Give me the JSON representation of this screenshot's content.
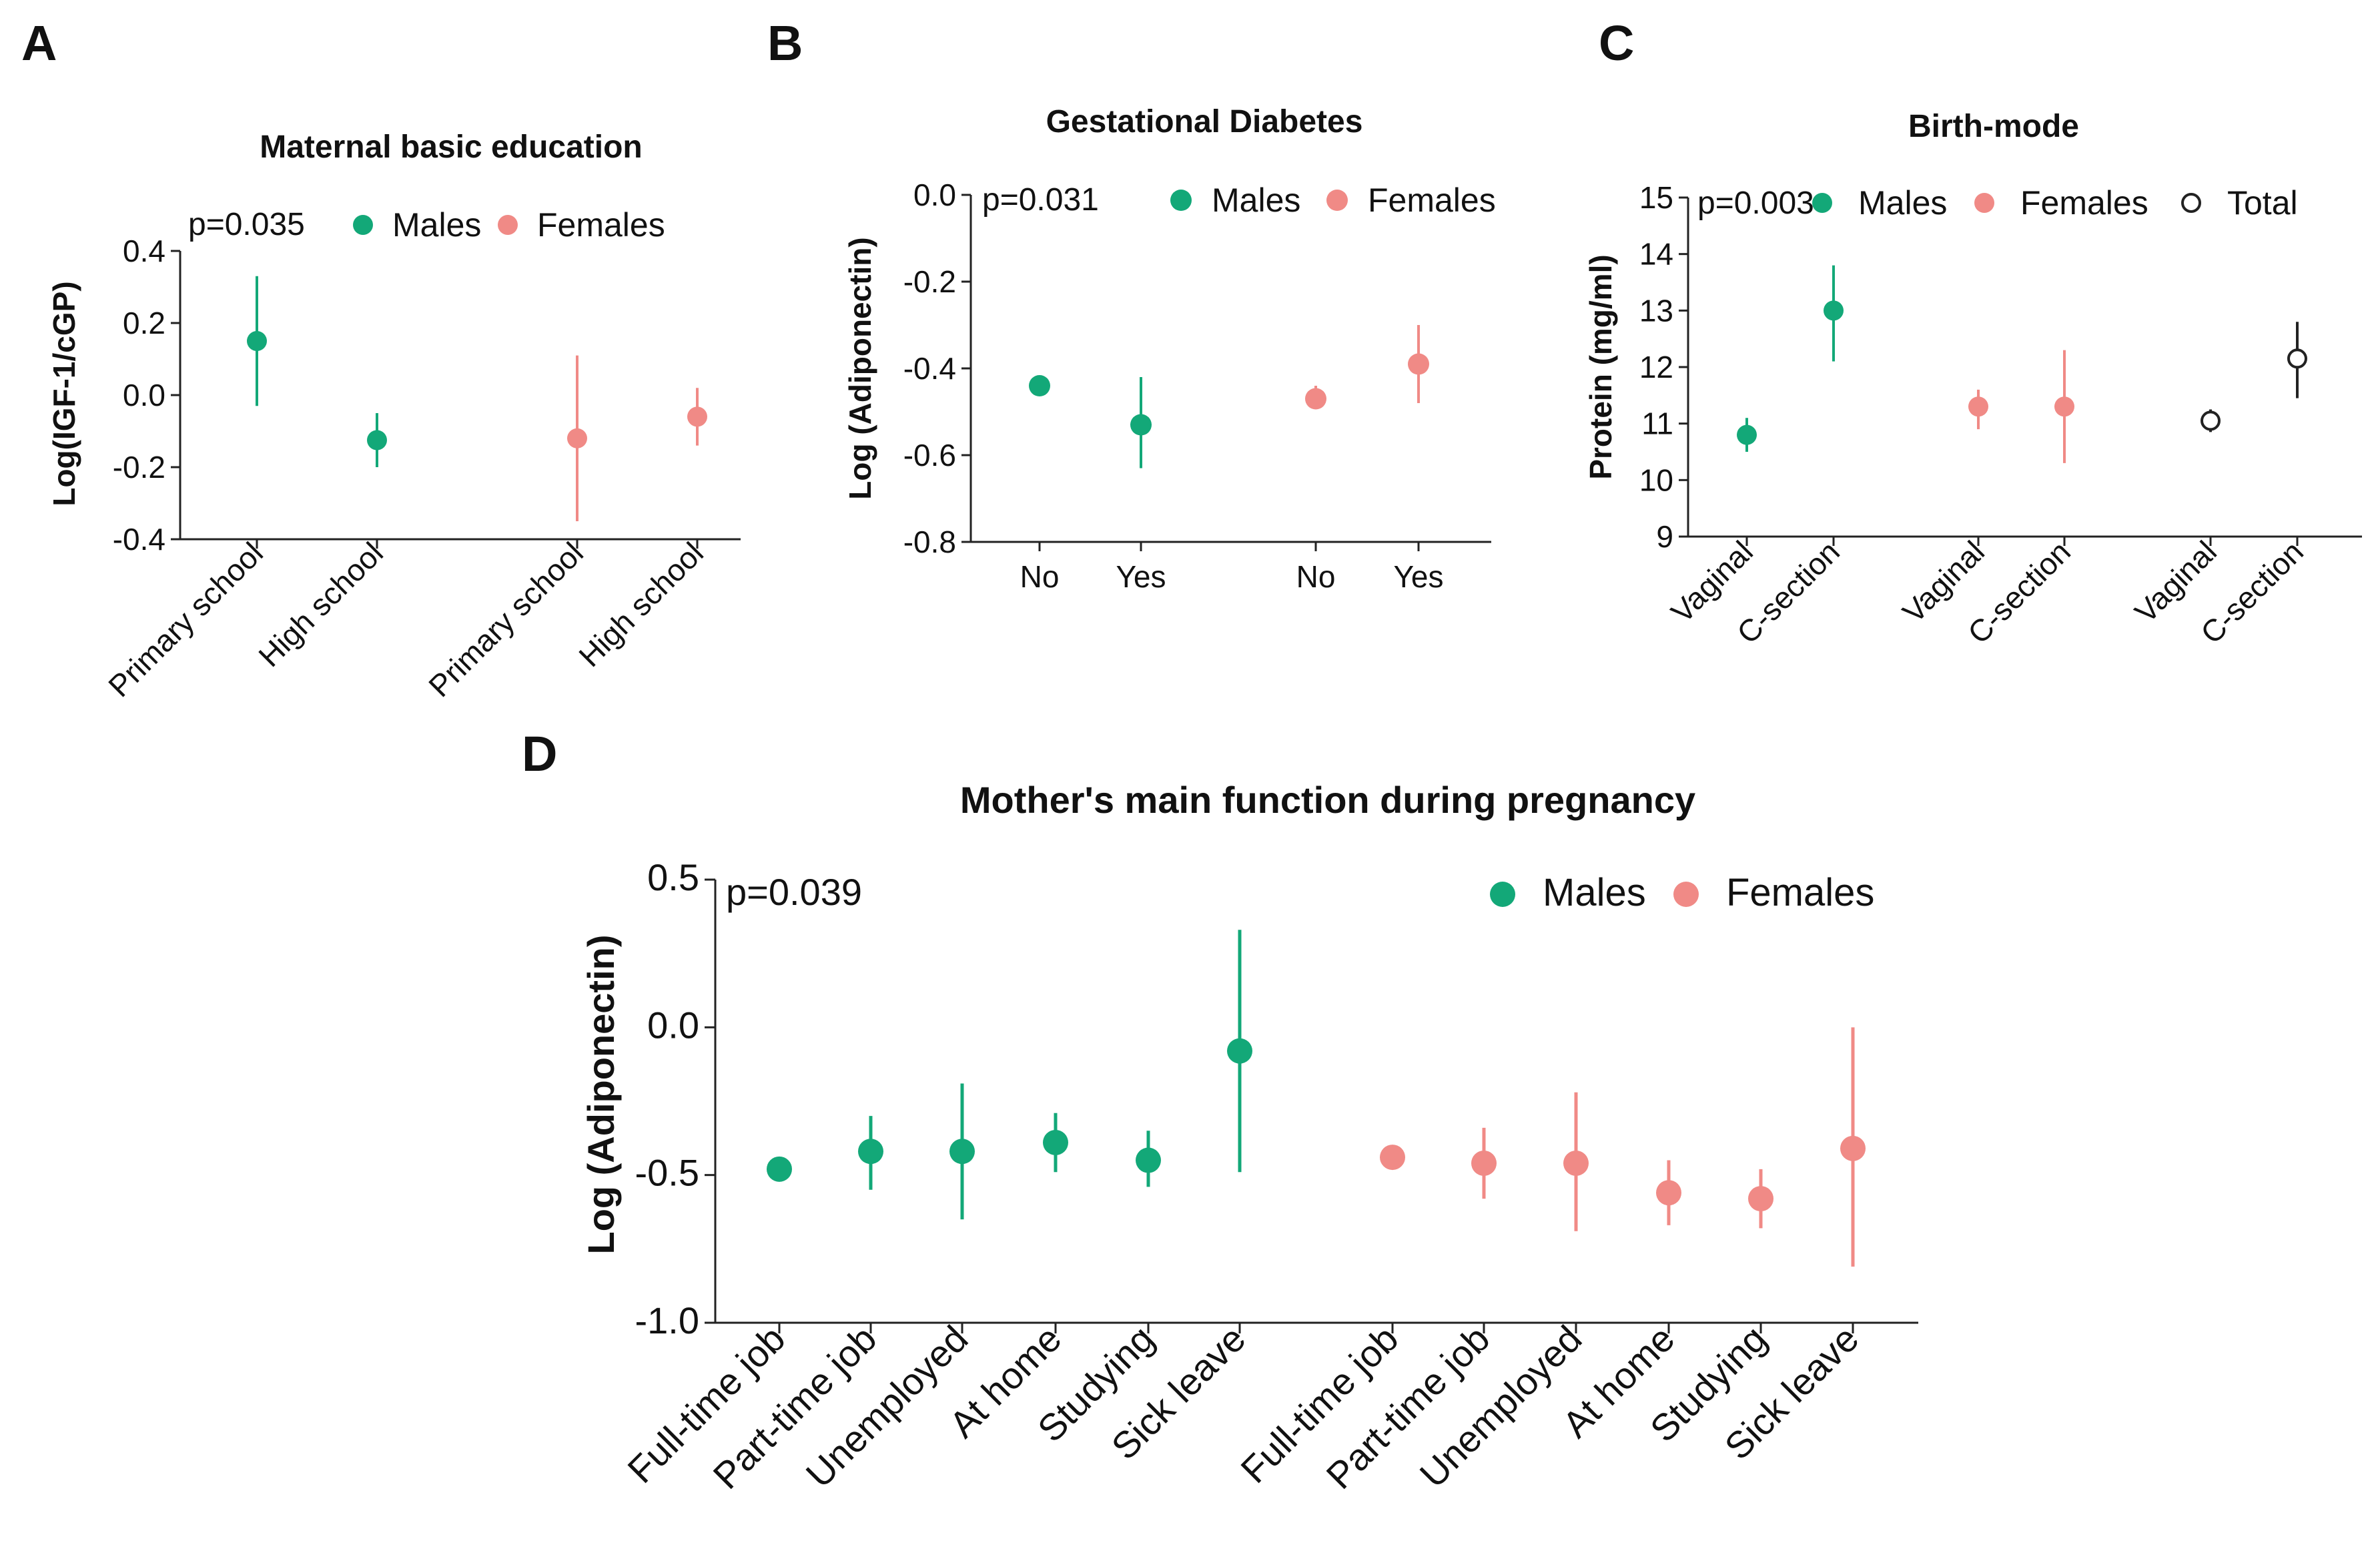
{
  "colors": {
    "males": "#13a878",
    "females": "#f08a86",
    "total": "#222222"
  },
  "chart_data": [
    {
      "panel": "A",
      "type": "scatter",
      "title": "Maternal basic education",
      "ylabel": "Log(IGF-1/cGP)",
      "xlabel": "",
      "ylim": [
        -0.4,
        0.4
      ],
      "yticks": [
        0.4,
        0.2,
        0.0,
        -0.2,
        -0.4
      ],
      "ytick_labels": [
        "0.4",
        "0.2",
        "0.0",
        "-0.2",
        "-0.4"
      ],
      "annotation": "p=0.035",
      "legend": [
        "Males",
        "Females"
      ],
      "categories": [
        "Primary school",
        "High school",
        "Primary school",
        "High school"
      ],
      "series": [
        {
          "name": "Males",
          "color_key": "males",
          "cat_index": [
            0,
            1
          ],
          "values": [
            0.15,
            -0.125
          ],
          "lower": [
            -0.03,
            -0.2
          ],
          "upper": [
            0.33,
            -0.05
          ]
        },
        {
          "name": "Females",
          "color_key": "females",
          "cat_index": [
            2,
            3
          ],
          "values": [
            -0.12,
            -0.06
          ],
          "lower": [
            -0.35,
            -0.14
          ],
          "upper": [
            0.11,
            0.02
          ]
        }
      ]
    },
    {
      "panel": "B",
      "type": "scatter",
      "title": "Gestational Diabetes",
      "ylabel": "Log (Adiponectin)",
      "xlabel": "",
      "ylim": [
        -0.8,
        0.0
      ],
      "yticks": [
        0.0,
        -0.2,
        -0.4,
        -0.6,
        -0.8
      ],
      "ytick_labels": [
        "0.0",
        "-0.2",
        "-0.4",
        "-0.6",
        "-0.8"
      ],
      "annotation": "p=0.031",
      "legend": [
        "Males",
        "Females"
      ],
      "categories": [
        "No",
        "Yes",
        "No",
        "Yes"
      ],
      "series": [
        {
          "name": "Males",
          "color_key": "males",
          "cat_index": [
            0,
            1
          ],
          "values": [
            -0.44,
            -0.53
          ],
          "lower": [
            -0.46,
            -0.63
          ],
          "upper": [
            -0.42,
            -0.42
          ]
        },
        {
          "name": "Females",
          "color_key": "females",
          "cat_index": [
            2,
            3
          ],
          "values": [
            -0.47,
            -0.39
          ],
          "lower": [
            -0.49,
            -0.48
          ],
          "upper": [
            -0.44,
            -0.3
          ]
        }
      ]
    },
    {
      "panel": "C",
      "type": "scatter",
      "title": "Birth-mode",
      "ylabel": "Protein (mg/ml)",
      "xlabel": "",
      "ylim": [
        9,
        15
      ],
      "yticks": [
        15,
        14,
        13,
        12,
        11,
        10,
        9
      ],
      "ytick_labels": [
        "15",
        "14",
        "13",
        "12",
        "11",
        "10",
        "9"
      ],
      "annotation": "p=0.003",
      "legend": [
        "Males",
        "Females",
        "Total"
      ],
      "categories": [
        "Vaginal",
        "C-section",
        "Vaginal",
        "C-section",
        "Vaginal",
        "C-section"
      ],
      "series": [
        {
          "name": "Males",
          "color_key": "males",
          "cat_index": [
            0,
            1
          ],
          "values": [
            10.8,
            13.0
          ],
          "lower": [
            10.5,
            12.1
          ],
          "upper": [
            11.1,
            13.8
          ]
        },
        {
          "name": "Females",
          "color_key": "females",
          "cat_index": [
            2,
            3
          ],
          "values": [
            11.3,
            11.3
          ],
          "lower": [
            10.9,
            10.3
          ],
          "upper": [
            11.6,
            12.3
          ]
        },
        {
          "name": "Total",
          "color_key": "total",
          "hollow": true,
          "cat_index": [
            4,
            5
          ],
          "values": [
            11.05,
            12.15
          ],
          "lower": [
            10.85,
            11.45
          ],
          "upper": [
            11.25,
            12.8
          ]
        }
      ]
    },
    {
      "panel": "D",
      "type": "scatter",
      "title": "Mother's main function during pregnancy",
      "ylabel": "Log (Adiponectin)",
      "xlabel": "",
      "ylim": [
        -1.0,
        0.5
      ],
      "yticks": [
        0.5,
        0.0,
        -0.5,
        -1.0
      ],
      "ytick_labels": [
        "0.5",
        "0.0",
        "-0.5",
        "-1.0"
      ],
      "annotation": "p=0.039",
      "legend": [
        "Males",
        "Females"
      ],
      "categories": [
        "Full-time job",
        "Part-time job",
        "Unemployed",
        "At home",
        "Studying",
        "Sick leave",
        "Full-time job",
        "Part-time job",
        "Unemployed",
        "At home",
        "Studying",
        "Sick leave"
      ],
      "series": [
        {
          "name": "Males",
          "color_key": "males",
          "cat_index": [
            0,
            1,
            2,
            3,
            4,
            5
          ],
          "values": [
            -0.48,
            -0.42,
            -0.42,
            -0.39,
            -0.45,
            -0.08
          ],
          "lower": [
            -0.5,
            -0.55,
            -0.65,
            -0.49,
            -0.54,
            -0.49
          ],
          "upper": [
            -0.46,
            -0.3,
            -0.19,
            -0.29,
            -0.35,
            0.33
          ]
        },
        {
          "name": "Females",
          "color_key": "females",
          "cat_index": [
            6,
            7,
            8,
            9,
            10,
            11
          ],
          "values": [
            -0.44,
            -0.46,
            -0.46,
            -0.56,
            -0.58,
            -0.41
          ],
          "lower": [
            -0.46,
            -0.58,
            -0.69,
            -0.67,
            -0.68,
            -0.81
          ],
          "upper": [
            -0.42,
            -0.34,
            -0.22,
            -0.45,
            -0.48,
            0.0
          ]
        }
      ]
    }
  ]
}
